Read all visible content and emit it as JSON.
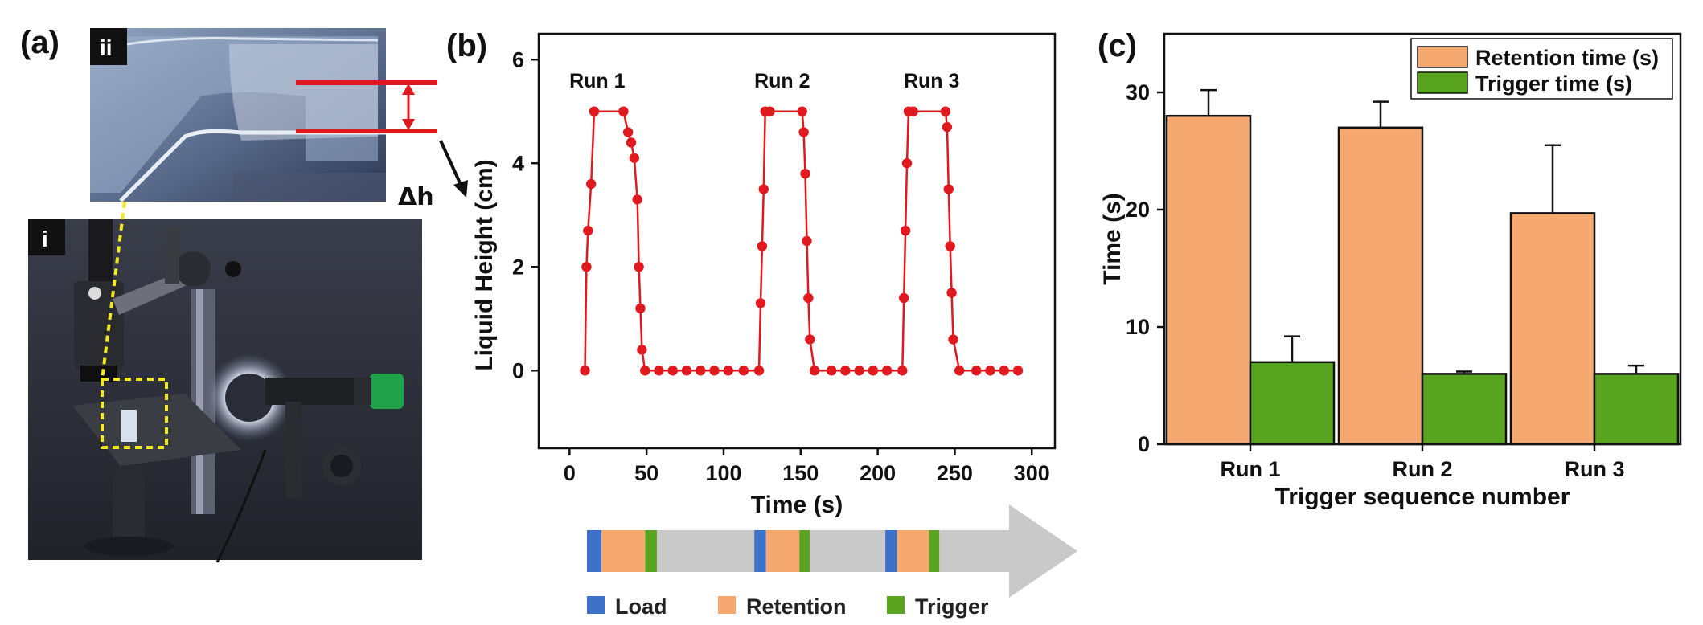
{
  "panels": {
    "a": "(a)",
    "b": "(b)",
    "c": "(c)"
  },
  "photo": {
    "inset_top_label": "ii",
    "inset_main_label": "i",
    "delta_h_label": "Δh"
  },
  "colors": {
    "run_line": "#e0191f",
    "retention": "#f5a870",
    "trigger": "#5aa520",
    "load": "#3e72c9",
    "arrow": "#c9c9c9"
  },
  "chart_data": [
    {
      "id": "b",
      "type": "line",
      "xlabel": "Time (s)",
      "ylabel": "Liquid Height (cm)",
      "xlim": [
        -20,
        315
      ],
      "ylim": [
        -1.5,
        6.5
      ],
      "xticks": [
        0,
        50,
        100,
        150,
        200,
        250,
        300
      ],
      "yticks": [
        0,
        2,
        4,
        6
      ],
      "annotations": [
        {
          "text": "Run 1",
          "x": 18,
          "y": 5.6
        },
        {
          "text": "Run 2",
          "x": 138,
          "y": 5.6
        },
        {
          "text": "Run 3",
          "x": 235,
          "y": 5.6
        }
      ],
      "series": [
        {
          "name": "Liquid height",
          "x": [
            10,
            11,
            12,
            14,
            16,
            35,
            38,
            40,
            42,
            44,
            45,
            46,
            47,
            49,
            58,
            67,
            76,
            85,
            94,
            103,
            113,
            123,
            124,
            125,
            126,
            127,
            130,
            151,
            152,
            153,
            154,
            155,
            156,
            159,
            170,
            179,
            188,
            197,
            206,
            216,
            217,
            218,
            219,
            220,
            223,
            244,
            245,
            246,
            247,
            248,
            249,
            253,
            264,
            273,
            282,
            291
          ],
          "y": [
            0,
            2.0,
            2.7,
            3.6,
            5.0,
            5.0,
            4.6,
            4.4,
            4.1,
            3.3,
            2.0,
            1.2,
            0.4,
            0,
            0,
            0,
            0,
            0,
            0,
            0,
            0,
            0,
            1.3,
            2.4,
            3.5,
            5.0,
            5.0,
            5.0,
            4.6,
            3.8,
            2.5,
            1.4,
            0.6,
            0,
            0,
            0,
            0,
            0,
            0,
            0,
            1.4,
            2.7,
            4.0,
            5.0,
            5.0,
            5.0,
            4.7,
            3.5,
            2.4,
            1.5,
            0.6,
            0,
            0,
            0,
            0,
            0
          ]
        }
      ]
    },
    {
      "id": "c",
      "type": "bar",
      "xlabel": "Trigger sequence number",
      "ylabel": "Time (s)",
      "ylim": [
        0,
        35
      ],
      "yticks": [
        0,
        10,
        20,
        30
      ],
      "categories": [
        "Run 1",
        "Run 2",
        "Run 3"
      ],
      "series": [
        {
          "name": "Retention time (s)",
          "values": [
            28.0,
            27.0,
            19.7
          ],
          "errors": [
            2.2,
            2.2,
            5.8
          ]
        },
        {
          "name": "Trigger time (s)",
          "values": [
            7.0,
            6.0,
            6.0
          ],
          "errors": [
            2.2,
            0.2,
            0.7
          ]
        }
      ],
      "legend_position": "top-right"
    }
  ],
  "sequence_bar": {
    "legend": [
      "Load",
      "Retention",
      "Trigger"
    ],
    "segments": [
      {
        "type": "load",
        "start": 0,
        "end": 10
      },
      {
        "type": "retention",
        "start": 10,
        "end": 40
      },
      {
        "type": "trigger",
        "start": 40,
        "end": 48
      },
      {
        "type": "load",
        "start": 115,
        "end": 123
      },
      {
        "type": "retention",
        "start": 123,
        "end": 146
      },
      {
        "type": "trigger",
        "start": 146,
        "end": 153
      },
      {
        "type": "load",
        "start": 205,
        "end": 213
      },
      {
        "type": "retention",
        "start": 213,
        "end": 235
      },
      {
        "type": "trigger",
        "start": 235,
        "end": 242
      }
    ],
    "span": [
      0,
      290
    ]
  }
}
